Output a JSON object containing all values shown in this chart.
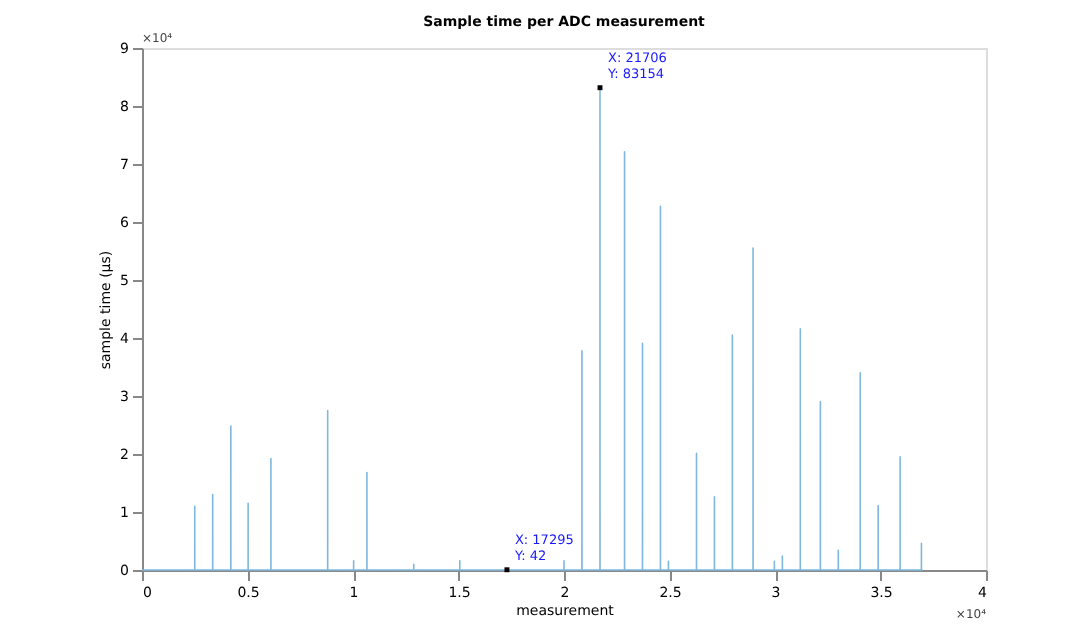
{
  "chart_data": {
    "type": "line",
    "title": "Sample time per ADC measurement",
    "xlabel": "measurement",
    "ylabel": "sample time (µs)",
    "x": [
      0,
      0.2499,
      0.25,
      0.2501,
      0.3349,
      0.335,
      0.3351,
      0.4209,
      0.421,
      0.4211,
      0.5029,
      0.503,
      0.5031,
      0.6109,
      0.611,
      0.6111,
      0.8799,
      0.88,
      0.8801,
      1.0029,
      1.003,
      1.0031,
      1.0659,
      1.066,
      1.0661,
      1.2879,
      1.288,
      1.2881,
      1.5059,
      1.506,
      1.5061,
      1.7294,
      1.7295,
      1.7296,
      1.9999,
      2.0,
      2.0001,
      2.0849,
      2.085,
      2.0851,
      2.1705,
      2.1706,
      2.1707,
      2.2869,
      2.287,
      2.2871,
      2.3719,
      2.372,
      2.3721,
      2.4569,
      2.457,
      2.4571,
      2.4949,
      2.495,
      2.4951,
      2.6279,
      2.628,
      2.6281,
      2.7129,
      2.713,
      2.7131,
      2.7979,
      2.798,
      2.7981,
      2.8959,
      2.896,
      2.8961,
      2.9969,
      2.997,
      2.9971,
      3.0349,
      3.035,
      3.0351,
      3.1199,
      3.12,
      3.1201,
      3.2149,
      3.215,
      3.2151,
      3.2999,
      3.3,
      3.3001,
      3.4039,
      3.404,
      3.4041,
      3.4889,
      3.489,
      3.4891,
      3.5929,
      3.593,
      3.5931,
      3.6939,
      3.694,
      3.6941,
      3.7
    ],
    "series": [
      {
        "color": "#7fb8dc",
        "values": [
          0,
          0,
          1.1,
          0,
          0,
          1.3,
          0,
          0,
          2.48,
          0,
          0,
          1.15,
          0,
          0,
          1.92,
          0,
          0,
          2.75,
          0,
          0,
          0.16,
          0,
          0,
          1.68,
          0,
          0,
          0.1,
          0,
          0,
          0.16,
          0,
          0,
          0.0042,
          0,
          0,
          0.16,
          0,
          0,
          3.78,
          0,
          0,
          8.3154,
          0,
          0,
          7.21,
          0,
          0,
          3.91,
          0,
          0,
          6.27,
          0,
          0,
          0.15,
          0,
          0,
          2.01,
          0,
          0,
          1.26,
          0,
          0,
          4.05,
          0,
          0,
          5.55,
          0,
          0,
          0.15,
          0,
          0,
          0.24,
          0,
          0,
          4.16,
          0,
          0,
          2.9,
          0,
          0,
          0.34,
          0,
          0,
          3.4,
          0,
          0,
          1.11,
          0,
          0,
          1.95,
          0,
          0,
          0.46,
          0,
          0
        ]
      }
    ],
    "xlim": [
      0,
      4
    ],
    "ylim": [
      0,
      9
    ],
    "xticks": [
      0,
      0.5,
      1,
      1.5,
      2,
      2.5,
      3,
      3.5,
      4
    ],
    "yticks": [
      0,
      1,
      2,
      3,
      4,
      5,
      6,
      7,
      8,
      9
    ],
    "annotations": [
      "×10⁴",
      "×10⁴",
      {
        "text": "X: 21706\nY: 83154",
        "x": 2.1706,
        "y": 8.3154
      },
      {
        "text": "X: 17295\nY: 42",
        "x": 1.7295,
        "y": 0.0042
      }
    ],
    "grid": false
  }
}
